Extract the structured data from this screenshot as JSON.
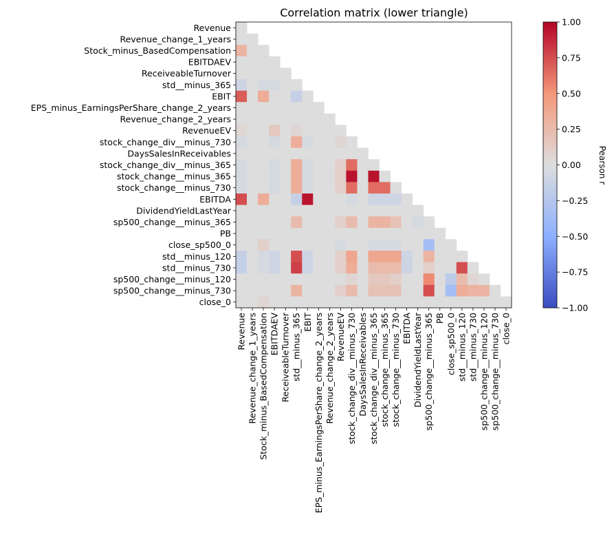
{
  "chart_data": {
    "type": "heatmap",
    "title": "Correlation matrix (lower triangle)",
    "xlabel": "",
    "ylabel": "",
    "labels": [
      "Revenue",
      "Revenue_change_1_years",
      "Stock_minus_BasedCompensation",
      "EBITDAEV",
      "ReceiveableTurnover",
      "std__minus_365",
      "EBIT",
      "EPS_minus_EarningsPerShare_change_2_years",
      "Revenue_change_2_years",
      "RevenueEV",
      "stock_change_div__minus_730",
      "DaysSalesInReceivables",
      "stock_change_div__minus_365",
      "stock_change__minus_365",
      "stock_change__minus_730",
      "EBITDA",
      "DividendYieldLastYear",
      "sp500_change__minus_365",
      "PB",
      "close_sp500_0",
      "std__minus_120",
      "std__minus_730",
      "sp500_change__minus_120",
      "sp500_change__minus_730",
      "close_0"
    ],
    "matrix": [
      [
        null
      ],
      [
        0.0,
        null
      ],
      [
        0.3,
        0.0,
        null
      ],
      [
        0.0,
        0.0,
        0.0,
        null
      ],
      [
        0.0,
        0.0,
        0.0,
        0.0,
        null
      ],
      [
        -0.1,
        0.0,
        -0.05,
        -0.05,
        0.0,
        null
      ],
      [
        0.7,
        0.0,
        0.35,
        0.0,
        0.0,
        -0.15,
        null
      ],
      [
        0.0,
        0.0,
        0.0,
        0.0,
        0.0,
        0.0,
        0.0,
        null
      ],
      [
        0.0,
        0.0,
        0.0,
        0.0,
        0.0,
        0.0,
        0.0,
        0.0,
        null
      ],
      [
        0.05,
        0.0,
        0.0,
        0.15,
        0.0,
        0.05,
        0.0,
        0.0,
        0.0,
        null
      ],
      [
        -0.05,
        0.0,
        0.0,
        -0.05,
        0.0,
        0.35,
        -0.05,
        0.0,
        0.0,
        0.05,
        null
      ],
      [
        0.0,
        0.0,
        0.0,
        0.0,
        0.0,
        0.0,
        0.0,
        0.0,
        0.0,
        0.0,
        0.0,
        null
      ],
      [
        -0.05,
        0.0,
        0.0,
        -0.05,
        0.0,
        0.35,
        -0.05,
        0.0,
        0.0,
        0.1,
        0.65,
        0.0,
        null
      ],
      [
        -0.05,
        0.0,
        0.0,
        -0.05,
        0.0,
        0.35,
        -0.05,
        0.0,
        0.0,
        0.1,
        0.95,
        0.0,
        0.95,
        null
      ],
      [
        -0.05,
        0.0,
        0.0,
        -0.05,
        0.0,
        0.35,
        -0.05,
        0.0,
        0.0,
        0.1,
        0.65,
        0.0,
        0.65,
        0.65,
        null
      ],
      [
        0.75,
        0.0,
        0.35,
        0.0,
        0.0,
        -0.15,
        0.95,
        0.0,
        0.0,
        0.0,
        -0.05,
        0.0,
        -0.1,
        -0.1,
        -0.1,
        null
      ],
      [
        0.0,
        0.0,
        0.0,
        0.0,
        0.0,
        0.0,
        0.0,
        0.0,
        0.0,
        0.0,
        0.0,
        0.0,
        0.0,
        0.0,
        0.0,
        0.0,
        null
      ],
      [
        0.0,
        0.0,
        0.0,
        0.0,
        0.0,
        0.25,
        0.0,
        0.0,
        0.0,
        0.1,
        0.25,
        0.0,
        0.3,
        0.3,
        0.2,
        0.0,
        -0.05,
        null
      ],
      [
        0.0,
        0.0,
        0.0,
        0.0,
        0.0,
        0.0,
        0.0,
        0.0,
        0.0,
        0.0,
        0.0,
        0.0,
        0.0,
        0.0,
        0.0,
        0.0,
        0.0,
        0.0,
        null
      ],
      [
        0.0,
        0.0,
        0.1,
        0.0,
        0.0,
        0.0,
        0.0,
        0.0,
        0.0,
        -0.05,
        0.0,
        0.0,
        -0.05,
        -0.05,
        -0.05,
        0.0,
        0.0,
        -0.35,
        0.0,
        null
      ],
      [
        -0.15,
        0.0,
        -0.05,
        -0.1,
        0.0,
        0.75,
        -0.1,
        0.0,
        0.0,
        0.1,
        0.4,
        0.0,
        0.4,
        0.4,
        0.4,
        -0.1,
        0.0,
        0.3,
        0.0,
        0.0,
        null
      ],
      [
        -0.15,
        0.0,
        -0.05,
        -0.1,
        0.0,
        0.8,
        -0.1,
        0.0,
        0.0,
        0.1,
        0.35,
        0.0,
        0.25,
        0.25,
        0.25,
        -0.1,
        0.0,
        0.1,
        0.0,
        0.0,
        0.75,
        null
      ],
      [
        0.0,
        0.0,
        0.0,
        0.0,
        0.0,
        0.0,
        0.0,
        0.0,
        0.0,
        0.0,
        0.05,
        0.0,
        0.15,
        0.15,
        0.1,
        0.0,
        0.0,
        0.55,
        0.0,
        -0.2,
        0.25,
        0.05,
        null
      ],
      [
        0.0,
        0.0,
        0.0,
        0.0,
        0.0,
        0.3,
        0.0,
        0.0,
        0.0,
        0.1,
        0.25,
        0.0,
        0.2,
        0.2,
        0.2,
        0.0,
        0.0,
        0.75,
        0.0,
        -0.35,
        0.35,
        0.3,
        0.3,
        null
      ],
      [
        0.0,
        0.0,
        0.05,
        0.0,
        0.0,
        0.0,
        0.0,
        0.0,
        0.0,
        0.0,
        0.0,
        0.0,
        0.0,
        0.0,
        0.0,
        0.0,
        0.0,
        0.0,
        0.0,
        0.0,
        0.0,
        0.0,
        0.0,
        0.0,
        null
      ]
    ],
    "colormap": "coolwarm",
    "nan_color": "#dddddd",
    "vmin": -1.0,
    "vmax": 1.0,
    "colorbar": {
      "label": "Pearson r",
      "ticks": [
        "1.00",
        "0.75",
        "0.50",
        "0.25",
        "0.00",
        "−0.25",
        "−0.50",
        "−0.75",
        "−1.00"
      ],
      "tick_values": [
        1.0,
        0.75,
        0.5,
        0.25,
        0.0,
        -0.25,
        -0.5,
        -0.75,
        -1.0
      ]
    },
    "grid": false,
    "legend": "colorbar-right"
  }
}
